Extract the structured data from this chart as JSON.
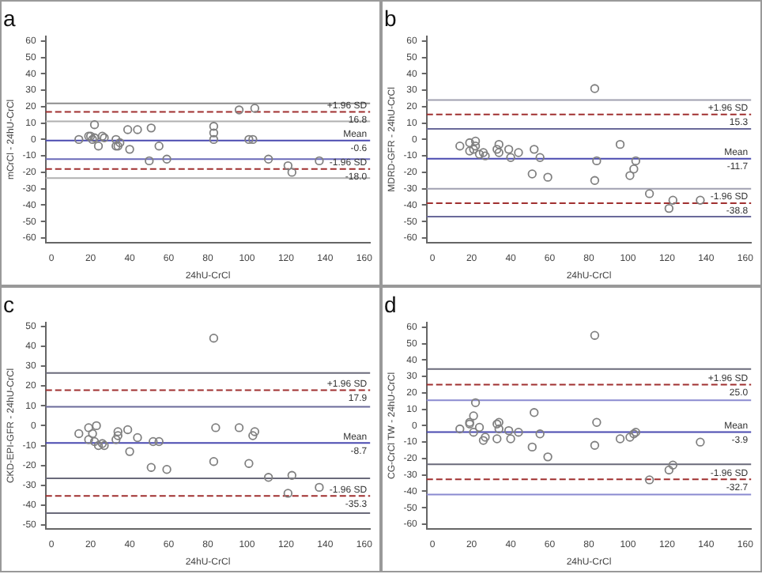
{
  "chart_data": [
    {
      "type": "scatter",
      "title": "a",
      "xlabel": "24hU-CrCl",
      "ylabel": "mCrCl - 24hU-CrCl",
      "marker": "circle",
      "grid": false,
      "legend": false,
      "xlim": [
        -3,
        163
      ],
      "ylim": [
        -63,
        63
      ],
      "xticks": [
        0,
        20,
        40,
        60,
        80,
        100,
        120,
        140,
        160
      ],
      "yticks": [
        -60,
        -50,
        -40,
        -30,
        -20,
        -10,
        0,
        10,
        20,
        30,
        40,
        50,
        60
      ],
      "series": [
        {
          "color": "#808080",
          "x": [
            14,
            19,
            20,
            21,
            22,
            22,
            24,
            26,
            27,
            33,
            33,
            34,
            35,
            39,
            40,
            44,
            51,
            50,
            55,
            59,
            83,
            83,
            83,
            96,
            101,
            103,
            104,
            111,
            121,
            123,
            137
          ],
          "values": [
            0,
            2,
            2,
            0,
            1,
            9,
            -4,
            2,
            1,
            0,
            -4,
            -4,
            -2,
            6,
            -6,
            6,
            7,
            -13,
            -4,
            -12,
            0,
            4,
            8,
            18,
            0,
            0,
            19,
            -12,
            -16,
            -20,
            -13
          ]
        }
      ],
      "ref_lines": [
        {
          "axis": "y",
          "value": 22,
          "color": "#8c8c8c",
          "line_style": "solid"
        },
        {
          "axis": "y",
          "value": 16.8,
          "label": "+1.96 SD",
          "color": "#a03030",
          "line_style": "dashed"
        },
        {
          "axis": "y",
          "value": 11,
          "color": "#b0b0b0",
          "line_style": "solid"
        },
        {
          "axis": "y",
          "value": -0.6,
          "label": "Mean",
          "color": "#4a4ab0",
          "line_style": "solid"
        },
        {
          "axis": "y",
          "value": -12,
          "color": "#6a6ab8",
          "line_style": "solid"
        },
        {
          "axis": "y",
          "value": -18,
          "label": "-1.96 SD",
          "color": "#a03030",
          "line_style": "dashed"
        },
        {
          "axis": "y",
          "value": -23.5,
          "color": "#b0b0b0",
          "line_style": "solid"
        }
      ],
      "annotations": [
        {
          "text": "16.8",
          "y": 16.8
        },
        {
          "text": "-0.6",
          "y": -0.6
        },
        {
          "text": "-18.0",
          "y": -18
        }
      ]
    },
    {
      "type": "scatter",
      "title": "b",
      "xlabel": "24hU-CrCl",
      "ylabel": "MDRD-GFR - 24hU-CrCl",
      "marker": "circle",
      "grid": false,
      "legend": false,
      "xlim": [
        -3,
        163
      ],
      "ylim": [
        -63,
        63
      ],
      "xticks": [
        0,
        20,
        40,
        60,
        80,
        100,
        120,
        140,
        160
      ],
      "yticks": [
        -60,
        -50,
        -40,
        -30,
        -20,
        -10,
        0,
        10,
        20,
        30,
        40,
        50,
        60
      ],
      "series": [
        {
          "color": "#808080",
          "x": [
            14,
            19,
            19,
            21,
            22,
            22,
            24,
            26,
            27,
            33,
            34,
            34,
            39,
            40,
            44,
            51,
            52,
            55,
            59,
            83,
            84,
            83,
            96,
            101,
            103,
            104,
            111,
            121,
            123,
            137
          ],
          "values": [
            -4,
            -2,
            -7,
            -6,
            -4,
            -1,
            -9,
            -8,
            -10,
            -6,
            -3,
            -8,
            -6,
            -11,
            -8,
            -21,
            -6,
            -11,
            -23,
            31,
            -13,
            -25,
            -3,
            -22,
            -18,
            -13,
            -33,
            -42,
            -37,
            -37
          ]
        }
      ],
      "ref_lines": [
        {
          "axis": "y",
          "value": 24,
          "color": "#a0a0b0",
          "line_style": "solid"
        },
        {
          "axis": "y",
          "value": 15.3,
          "label": "+1.96 SD",
          "color": "#a03030",
          "line_style": "dashed"
        },
        {
          "axis": "y",
          "value": 6.5,
          "color": "#6a6a9a",
          "line_style": "solid"
        },
        {
          "axis": "y",
          "value": -11.7,
          "label": "Mean",
          "color": "#4a4ab0",
          "line_style": "solid"
        },
        {
          "axis": "y",
          "value": -30,
          "color": "#a0a0b0",
          "line_style": "solid"
        },
        {
          "axis": "y",
          "value": -38.8,
          "label": "-1.96 SD",
          "color": "#a03030",
          "line_style": "dashed"
        },
        {
          "axis": "y",
          "value": -47,
          "color": "#6a6a9a",
          "line_style": "solid"
        }
      ],
      "annotations": [
        {
          "text": "15.3",
          "y": 15.3
        },
        {
          "text": "-11.7",
          "y": -11.7
        },
        {
          "text": "-38.8",
          "y": -38.8
        }
      ]
    },
    {
      "type": "scatter",
      "title": "c",
      "xlabel": "24hU-CrCl",
      "ylabel": "CKD-EPI-GFR - 24hU-CrCl",
      "marker": "circle",
      "grid": false,
      "legend": false,
      "xlim": [
        -3,
        163
      ],
      "ylim": [
        -52,
        52
      ],
      "xticks": [
        0,
        20,
        40,
        60,
        80,
        100,
        120,
        140,
        160
      ],
      "yticks": [
        -50,
        -40,
        -30,
        -20,
        -10,
        0,
        10,
        20,
        30,
        40,
        50
      ],
      "series": [
        {
          "color": "#808080",
          "x": [
            14,
            19,
            19,
            21,
            22,
            23,
            24,
            26,
            27,
            33,
            34,
            34,
            39,
            40,
            44,
            51,
            52,
            55,
            59,
            83,
            84,
            83,
            96,
            101,
            103,
            104,
            111,
            121,
            123,
            137
          ],
          "values": [
            -4,
            -1,
            -7,
            -4,
            -8,
            0,
            -10,
            -9,
            -10,
            -7,
            -3,
            -5,
            -2,
            -13,
            -6,
            -21,
            -8,
            -8,
            -22,
            44,
            -1,
            -18,
            -1,
            -19,
            -5,
            -3,
            -26,
            -34,
            -25,
            -31
          ]
        }
      ],
      "ref_lines": [
        {
          "axis": "y",
          "value": 26.5,
          "color": "#6a6a7a",
          "line_style": "solid"
        },
        {
          "axis": "y",
          "value": 17.9,
          "label": "+1.96 SD",
          "color": "#a03030",
          "line_style": "dashed"
        },
        {
          "axis": "y",
          "value": 9.5,
          "color": "#6a6a9a",
          "line_style": "solid"
        },
        {
          "axis": "y",
          "value": -8.7,
          "label": "Mean",
          "color": "#4a4ab0",
          "line_style": "solid"
        },
        {
          "axis": "y",
          "value": -26.5,
          "color": "#6a6a7a",
          "line_style": "solid"
        },
        {
          "axis": "y",
          "value": -35.3,
          "label": "-1.96 SD",
          "color": "#a03030",
          "line_style": "dashed"
        },
        {
          "axis": "y",
          "value": -44,
          "color": "#6a6a7a",
          "line_style": "solid"
        }
      ],
      "annotations": [
        {
          "text": "17.9",
          "y": 17.9
        },
        {
          "text": "-8.7",
          "y": -8.7
        },
        {
          "text": "-35.3",
          "y": -35.3
        }
      ]
    },
    {
      "type": "scatter",
      "title": "d",
      "xlabel": "24hU-CrCl",
      "ylabel": "CG-CrCl TW - 24hU-CrCl",
      "marker": "circle",
      "grid": false,
      "legend": false,
      "xlim": [
        -3,
        163
      ],
      "ylim": [
        -63,
        63
      ],
      "xticks": [
        0,
        20,
        40,
        60,
        80,
        100,
        120,
        140,
        160
      ],
      "yticks": [
        -60,
        -50,
        -40,
        -30,
        -20,
        -10,
        0,
        10,
        20,
        30,
        40,
        50,
        60
      ],
      "series": [
        {
          "color": "#808080",
          "x": [
            14,
            19,
            19,
            21,
            21,
            22,
            24,
            26,
            27,
            33,
            33,
            34,
            34,
            39,
            40,
            44,
            51,
            52,
            55,
            59,
            83,
            84,
            83,
            96,
            101,
            103,
            104,
            111,
            121,
            123,
            137
          ],
          "values": [
            -2,
            1,
            2,
            -4,
            6,
            14,
            -1,
            -9,
            -7,
            -8,
            1,
            -2,
            2,
            -3,
            -8,
            -4,
            -13,
            8,
            -5,
            -19,
            55,
            2,
            -12,
            -8,
            -7,
            -5,
            -4,
            -33,
            -27,
            -24,
            -10
          ]
        }
      ],
      "ref_lines": [
        {
          "axis": "y",
          "value": 34.5,
          "color": "#6a6a7a",
          "line_style": "solid"
        },
        {
          "axis": "y",
          "value": 25,
          "label": "+1.96 SD",
          "color": "#a03030",
          "line_style": "dashed"
        },
        {
          "axis": "y",
          "value": 15.5,
          "color": "#8a8ad0",
          "line_style": "solid"
        },
        {
          "axis": "y",
          "value": -3.9,
          "label": "Mean",
          "color": "#4a4ab0",
          "line_style": "solid"
        },
        {
          "axis": "y",
          "value": -23.5,
          "color": "#6a6a7a",
          "line_style": "solid"
        },
        {
          "axis": "y",
          "value": -32.7,
          "label": "-1.96 SD",
          "color": "#a03030",
          "line_style": "dashed"
        },
        {
          "axis": "y",
          "value": -42,
          "color": "#8a8ad0",
          "line_style": "solid"
        }
      ],
      "annotations": [
        {
          "text": "25.0",
          "y": 25
        },
        {
          "text": "-3.9",
          "y": -3.9
        },
        {
          "text": "-32.7",
          "y": -32.7
        }
      ]
    }
  ]
}
